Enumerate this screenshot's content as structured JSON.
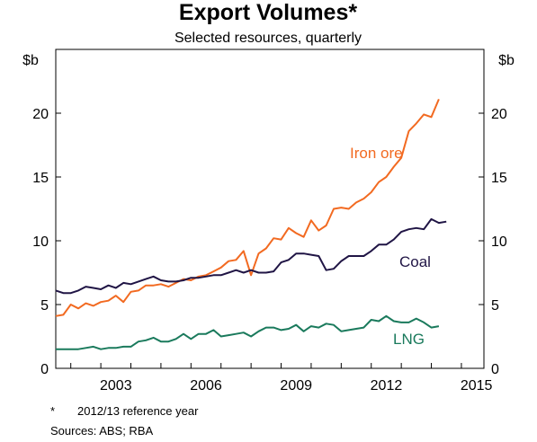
{
  "chart_data": {
    "type": "line",
    "title": "Export Volumes*",
    "subtitle": "Selected resources, quarterly",
    "y_unit_left": "$b",
    "y_unit_right": "$b",
    "ylim": [
      0,
      25
    ],
    "yticks": [
      0,
      5,
      10,
      15,
      20
    ],
    "xlim": [
      2001.5,
      2015.75
    ],
    "xticks": [
      2003,
      2006,
      2009,
      2012,
      2015
    ],
    "xtick_labels": [
      "2003",
      "2006",
      "2009",
      "2012",
      "2015"
    ],
    "grid": false,
    "series": [
      {
        "name": "Iron ore",
        "color": "#f26a21",
        "x": [
          2001.5,
          2001.75,
          2002,
          2002.25,
          2002.5,
          2002.75,
          2003,
          2003.25,
          2003.5,
          2003.75,
          2004,
          2004.25,
          2004.5,
          2004.75,
          2005,
          2005.25,
          2005.5,
          2005.75,
          2006,
          2006.25,
          2006.5,
          2006.75,
          2007,
          2007.25,
          2007.5,
          2007.75,
          2008,
          2008.25,
          2008.5,
          2008.75,
          2009,
          2009.25,
          2009.5,
          2009.75,
          2010,
          2010.25,
          2010.5,
          2010.75,
          2011,
          2011.25,
          2011.5,
          2011.75,
          2012,
          2012.25,
          2012.5,
          2012.75,
          2013,
          2013.25,
          2013.5,
          2013.75,
          2014,
          2014.25,
          2014.5,
          2014.75
        ],
        "values": [
          4.1,
          4.2,
          5.0,
          4.7,
          5.1,
          4.9,
          5.2,
          5.3,
          5.7,
          5.2,
          6.0,
          6.1,
          6.5,
          6.5,
          6.6,
          6.4,
          6.7,
          7.0,
          6.9,
          7.2,
          7.3,
          7.6,
          7.9,
          8.4,
          8.5,
          9.2,
          7.3,
          9.0,
          9.4,
          10.2,
          10.1,
          11.0,
          10.6,
          10.3,
          11.6,
          10.8,
          11.2,
          12.5,
          12.6,
          12.5,
          13.0,
          13.3,
          13.8,
          14.6,
          15.0,
          15.8,
          16.5,
          18.6,
          19.2,
          19.9,
          19.7,
          21.1,
          null,
          null
        ]
      },
      {
        "name": "Coal",
        "color": "#201545",
        "x": [
          2001.5,
          2001.75,
          2002,
          2002.25,
          2002.5,
          2002.75,
          2003,
          2003.25,
          2003.5,
          2003.75,
          2004,
          2004.25,
          2004.5,
          2004.75,
          2005,
          2005.25,
          2005.5,
          2005.75,
          2006,
          2006.25,
          2006.5,
          2006.75,
          2007,
          2007.25,
          2007.5,
          2007.75,
          2008,
          2008.25,
          2008.5,
          2008.75,
          2009,
          2009.25,
          2009.5,
          2009.75,
          2010,
          2010.25,
          2010.5,
          2010.75,
          2011,
          2011.25,
          2011.5,
          2011.75,
          2012,
          2012.25,
          2012.5,
          2012.75,
          2013,
          2013.25,
          2013.5,
          2013.75,
          2014,
          2014.25,
          2014.5,
          2014.75
        ],
        "values": [
          6.1,
          5.9,
          5.9,
          6.1,
          6.4,
          6.3,
          6.2,
          6.5,
          6.3,
          6.7,
          6.6,
          6.8,
          7.0,
          7.2,
          6.9,
          6.8,
          6.8,
          6.9,
          7.1,
          7.1,
          7.2,
          7.3,
          7.3,
          7.5,
          7.7,
          7.5,
          7.7,
          7.5,
          7.5,
          7.6,
          8.3,
          8.5,
          9.0,
          9.0,
          8.9,
          8.8,
          7.7,
          7.8,
          8.4,
          8.8,
          8.8,
          8.8,
          9.2,
          9.7,
          9.7,
          10.1,
          10.7,
          10.9,
          11.0,
          10.9,
          11.7,
          11.4,
          11.5,
          null
        ],
        "__fix": "align"
      },
      {
        "name": "LNG",
        "color": "#1a7a5c",
        "x": [
          2001.5,
          2001.75,
          2002,
          2002.25,
          2002.5,
          2002.75,
          2003,
          2003.25,
          2003.5,
          2003.75,
          2004,
          2004.25,
          2004.5,
          2004.75,
          2005,
          2005.25,
          2005.5,
          2005.75,
          2006,
          2006.25,
          2006.5,
          2006.75,
          2007,
          2007.25,
          2007.5,
          2007.75,
          2008,
          2008.25,
          2008.5,
          2008.75,
          2009,
          2009.25,
          2009.5,
          2009.75,
          2010,
          2010.25,
          2010.5,
          2010.75,
          2011,
          2011.25,
          2011.5,
          2011.75,
          2012,
          2012.25,
          2012.5,
          2012.75,
          2013,
          2013.25,
          2013.5,
          2013.75,
          2014,
          2014.25,
          2014.5,
          2014.75
        ],
        "values": [
          1.5,
          1.5,
          1.5,
          1.5,
          1.6,
          1.7,
          1.5,
          1.6,
          1.6,
          1.7,
          1.7,
          2.1,
          2.2,
          2.4,
          2.1,
          2.1,
          2.3,
          2.7,
          2.3,
          2.7,
          2.7,
          3.0,
          2.5,
          2.6,
          2.7,
          2.8,
          2.5,
          2.9,
          3.2,
          3.2,
          3.0,
          3.1,
          3.4,
          2.9,
          3.3,
          3.2,
          3.5,
          3.4,
          2.9,
          3.0,
          3.1,
          3.2,
          3.8,
          3.7,
          4.1,
          3.7,
          3.6,
          3.6,
          3.9,
          3.6,
          3.2,
          3.3,
          null,
          null
        ]
      }
    ],
    "annotations": {
      "iron_ore": "Iron ore",
      "coal": "Coal",
      "lng": "LNG"
    }
  },
  "notes": {
    "asterisk": "*",
    "footnote": "2012/13 reference year",
    "sources": "Sources:   ABS; RBA"
  }
}
